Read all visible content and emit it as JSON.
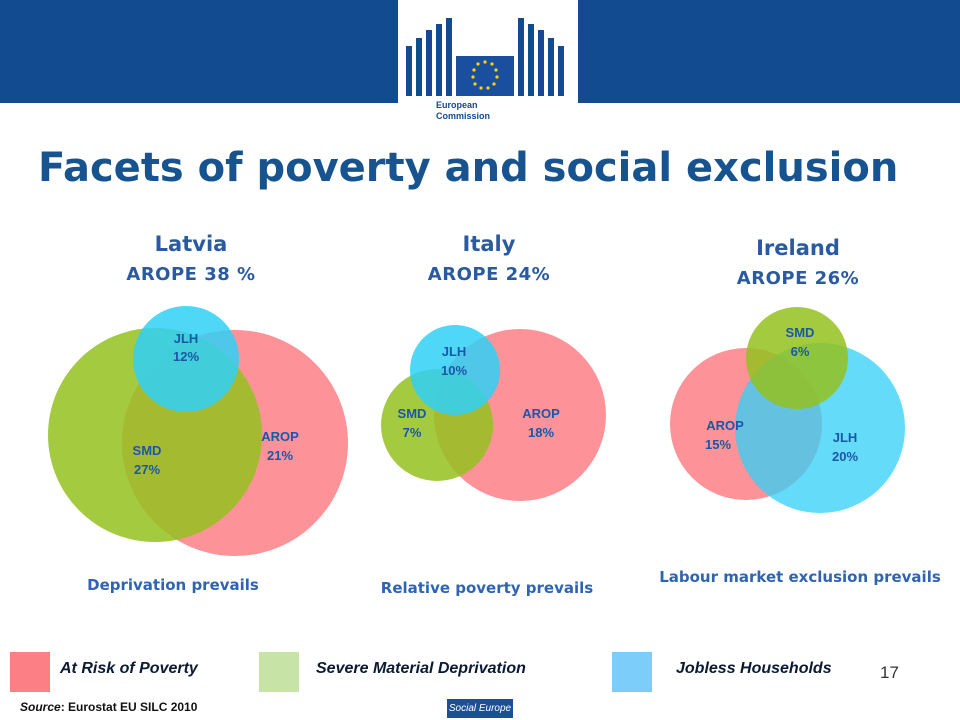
{
  "header": {
    "logo_line1": "European",
    "logo_line2": "Commission"
  },
  "title": "Facets of poverty and social exclusion",
  "colors": {
    "arop": "#fd7f86",
    "smd": "#94c11f",
    "jlh": "#30d0f7",
    "brand": "#124b8f",
    "title": "#17548f"
  },
  "countries": [
    {
      "name": "Latvia",
      "arope": "AROPE 38 %",
      "caption": "Deprivation prevails",
      "labels": {
        "jlh": "JLH",
        "jlh_value": "12%",
        "smd": "SMD",
        "smd_value": "27%",
        "arop": "AROP",
        "arop_value": "21%"
      }
    },
    {
      "name": "Italy",
      "arope": "AROPE 24%",
      "caption": "Relative poverty prevails",
      "labels": {
        "jlh": "JLH",
        "jlh_value": "10%",
        "smd": "SMD",
        "smd_value": "7%",
        "arop": "AROP",
        "arop_value": "18%"
      }
    },
    {
      "name": "Ireland",
      "arope": "AROPE 26%",
      "caption": "Labour market exclusion prevails",
      "labels": {
        "smd": "SMD",
        "smd_value": "6%",
        "arop": "AROP",
        "arop_value": "15%",
        "jlh": "JLH",
        "jlh_value": "20%"
      }
    }
  ],
  "legend": {
    "arop": "At Risk of Poverty",
    "smd": "Severe Material Deprivation",
    "jlh": "Jobless Households"
  },
  "page_number": "17",
  "source": {
    "prefix": "Source",
    "text": ": Eurostat EU SILC 2010"
  },
  "footer_logo": "Social Europe"
}
